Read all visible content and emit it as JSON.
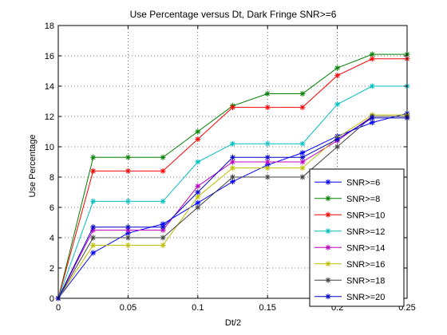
{
  "chart_data": {
    "type": "line",
    "title": "Use Percentage versus Dt, Dark Fringe SNR>=6",
    "xlabel": "Dt/2",
    "ylabel": "Use Percentage",
    "xlim": [
      0,
      0.25
    ],
    "ylim": [
      0,
      18
    ],
    "xticks": [
      0,
      0.05,
      0.1,
      0.15,
      0.2,
      0.25
    ],
    "xtick_labels": [
      "0",
      "0.05",
      "0.1",
      "0.15",
      "0.2",
      "0.25"
    ],
    "yticks": [
      0,
      2,
      4,
      6,
      8,
      10,
      12,
      14,
      16,
      18
    ],
    "ytick_labels": [
      "0",
      "2",
      "4",
      "6",
      "8",
      "10",
      "12",
      "14",
      "16",
      "18"
    ],
    "grid": true,
    "legend_position": "bottom-right",
    "marker": "asterisk",
    "x": [
      0,
      0.025,
      0.05,
      0.075,
      0.1,
      0.125,
      0.15,
      0.175,
      0.2,
      0.225,
      0.25
    ],
    "series": [
      {
        "name": "SNR>=6",
        "color": "#0000ff",
        "values": [
          0,
          3.0,
          4.3,
          4.9,
          6.3,
          7.7,
          8.8,
          9.6,
          10.7,
          11.6,
          12.2
        ]
      },
      {
        "name": "SNR>=8",
        "color": "#008000",
        "values": [
          0,
          9.3,
          9.3,
          9.3,
          11.0,
          12.7,
          13.5,
          13.5,
          15.2,
          16.1,
          16.1
        ]
      },
      {
        "name": "SNR>=10",
        "color": "#ff0000",
        "values": [
          0,
          8.4,
          8.4,
          8.4,
          10.5,
          12.6,
          12.6,
          12.6,
          14.7,
          15.8,
          15.8
        ]
      },
      {
        "name": "SNR>=12",
        "color": "#00bfbf",
        "values": [
          0,
          6.4,
          6.4,
          6.4,
          9.0,
          10.2,
          10.2,
          10.2,
          12.8,
          14.0,
          14.0
        ]
      },
      {
        "name": "SNR>=14",
        "color": "#bf00bf",
        "values": [
          0,
          4.5,
          4.5,
          4.5,
          7.4,
          9.0,
          9.0,
          9.0,
          10.4,
          12.0,
          12.0
        ]
      },
      {
        "name": "SNR>=16",
        "color": "#bfbf00",
        "values": [
          0,
          3.5,
          3.5,
          3.5,
          6.7,
          8.6,
          8.6,
          8.6,
          10.6,
          12.1,
          12.1
        ]
      },
      {
        "name": "SNR>=18",
        "color": "#404040",
        "values": [
          0,
          4.0,
          4.0,
          4.0,
          6.0,
          8.0,
          8.0,
          8.0,
          10.0,
          12.0,
          12.0
        ]
      },
      {
        "name": "SNR>=20",
        "color": "#0000cc",
        "values": [
          0,
          4.7,
          4.7,
          4.7,
          7.0,
          9.3,
          9.3,
          9.3,
          10.5,
          11.9,
          11.9
        ]
      }
    ]
  }
}
